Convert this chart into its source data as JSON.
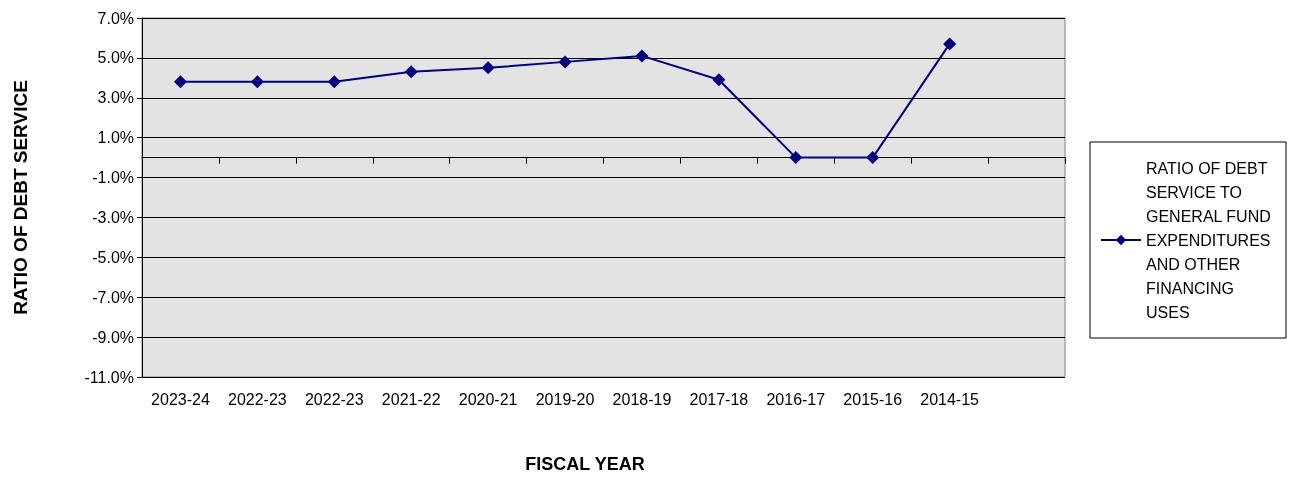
{
  "chart_data": {
    "type": "line",
    "xlabel": "FISCAL YEAR",
    "ylabel": "RATIO OF DEBT SERVICE",
    "categories": [
      "2023-24",
      "2022-23",
      "2022-23",
      "2021-22",
      "2020-21",
      "2019-20",
      "2018-19",
      "2017-18",
      "2016-17",
      "2015-16",
      "2014-15",
      null
    ],
    "series": [
      {
        "name": "RATIO OF DEBT SERVICE TO GENERAL FUND EXPENDITURES AND OTHER FINANCING USES",
        "color": "#000080",
        "values": [
          3.8,
          3.8,
          3.8,
          4.3,
          4.5,
          4.8,
          5.1,
          3.9,
          0,
          0,
          5.7,
          null
        ]
      }
    ],
    "ylim": [
      -11,
      7
    ],
    "yticks": [
      {
        "value": -11,
        "label": "-11.0%"
      },
      {
        "value": -9,
        "label": "-9.0%"
      },
      {
        "value": -7,
        "label": "-7.0%"
      },
      {
        "value": -5,
        "label": "-5.0%"
      },
      {
        "value": -3,
        "label": "-3.0%"
      },
      {
        "value": -1,
        "label": "-1.0%"
      },
      {
        "value": 1,
        "label": "1.0%"
      },
      {
        "value": 3,
        "label": "3.0%"
      },
      {
        "value": 5,
        "label": "5.0%"
      },
      {
        "value": 7,
        "label": "7.0%"
      }
    ],
    "grid": "y",
    "legend": "right",
    "marker": "diamond",
    "line_style": "solid"
  }
}
